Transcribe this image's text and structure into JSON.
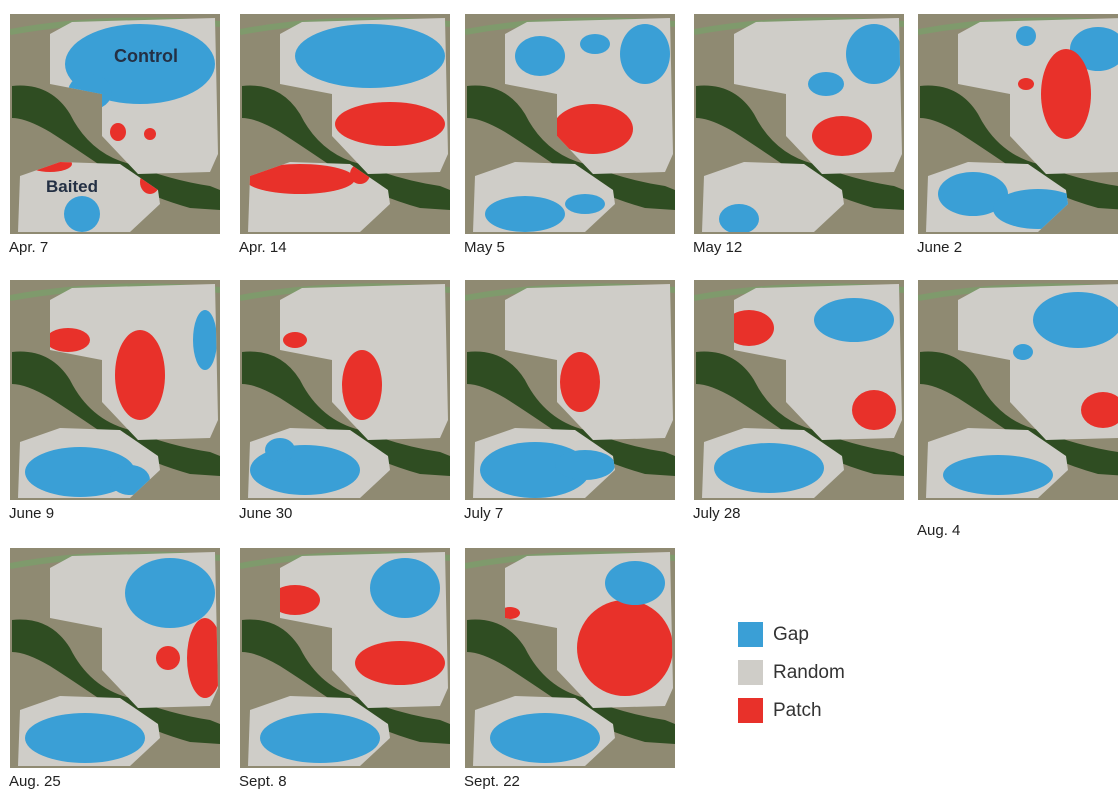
{
  "colors": {
    "gap": "#3a9fd6",
    "random": "#cfcdc8",
    "patch": "#e8312a"
  },
  "legend": [
    {
      "label": "Gap",
      "color": "#3a9fd6"
    },
    {
      "label": "Random",
      "color": "#cfcdc8"
    },
    {
      "label": "Patch",
      "color": "#e8312a"
    }
  ],
  "field_labels": {
    "control": "Control",
    "baited": "Baited"
  },
  "panels": [
    {
      "date": "Apr. 7"
    },
    {
      "date": "Apr. 14"
    },
    {
      "date": "May 5"
    },
    {
      "date": "May 12"
    },
    {
      "date": "June 2"
    },
    {
      "date": "June 9"
    },
    {
      "date": "June 30"
    },
    {
      "date": "July 7"
    },
    {
      "date": "July 28"
    },
    {
      "date": "Aug. 4"
    },
    {
      "date": "Aug. 25"
    },
    {
      "date": "Sept. 8"
    },
    {
      "date": "Sept. 22"
    }
  ]
}
